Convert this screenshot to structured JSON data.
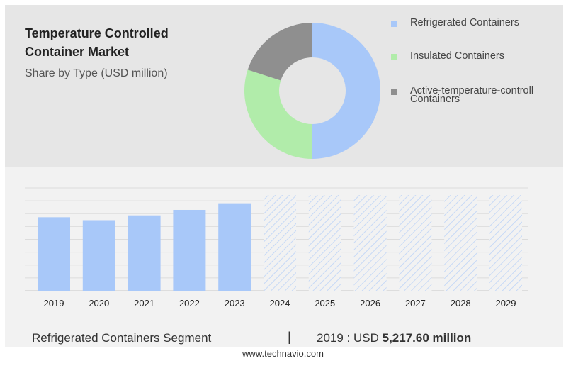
{
  "title": "Temperature Controlled Container Market",
  "title_line1": "Temperature Controlled",
  "title_line2": "Container Market",
  "subtitle": "Share by Type (USD million)",
  "legend": [
    {
      "label": "Refrigerated Containers",
      "color": "#a8c8f9"
    },
    {
      "label": "Insulated Containers",
      "color": "#b1ecaa"
    },
    {
      "label": "Active-temperature-controll Containers",
      "label_line1": "Active-temperature-controll",
      "label_line2": "Containers",
      "color": "#8f8f8f"
    }
  ],
  "footer": {
    "segment": "Refrigerated Containers Segment",
    "separator": "|",
    "year_prefix": "2019 : USD",
    "value": "5,217.60 million"
  },
  "website": "www.technavio.com",
  "chart_data": [
    {
      "type": "pie",
      "variant": "donut",
      "categories": [
        "Refrigerated Containers",
        "Insulated Containers",
        "Active-temperature-controll Containers"
      ],
      "values": [
        50,
        30,
        20
      ],
      "colors": [
        "#a8c8f9",
        "#b1ecaa",
        "#8f8f8f"
      ]
    },
    {
      "type": "bar",
      "categories": [
        "2019",
        "2020",
        "2021",
        "2022",
        "2023",
        "2024",
        "2025",
        "2026",
        "2027",
        "2028",
        "2029"
      ],
      "values": [
        5217.6,
        5010,
        5350,
        5740,
        6210,
        null,
        null,
        null,
        null,
        null,
        null
      ],
      "forecast_categories": [
        "2024",
        "2025",
        "2026",
        "2027",
        "2028",
        "2029"
      ],
      "ylim": [
        0,
        7300
      ],
      "grid": true,
      "bar_color": "#a8c8f9",
      "forecast_style": "hatched"
    }
  ]
}
